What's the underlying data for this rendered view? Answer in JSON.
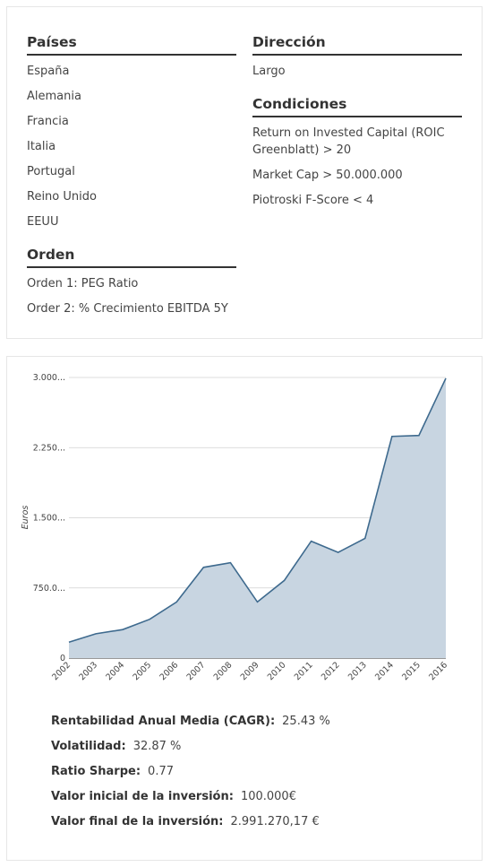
{
  "criteria": {
    "countries": {
      "title": "Países",
      "items": [
        "España",
        "Alemania",
        "Francia",
        "Italia",
        "Portugal",
        "Reino Unido",
        "EEUU"
      ]
    },
    "order": {
      "title": "Orden",
      "items": [
        "Orden 1: PEG Ratio",
        "Order 2: % Crecimiento EBITDA 5Y"
      ]
    },
    "direction": {
      "title": "Dirección",
      "items": [
        "Largo"
      ]
    },
    "conditions": {
      "title": "Condiciones",
      "items": [
        "Return on Invested Capital (ROIC Greenblatt) > 20",
        "Market Cap > 50.000.000",
        "Piotroski F-Score < 4"
      ]
    }
  },
  "chart_data": {
    "type": "area",
    "ylabel": "Euros",
    "x": [
      "2002",
      "2003",
      "2004",
      "2005",
      "2006",
      "2007",
      "2008",
      "2009",
      "2010",
      "2011",
      "2012",
      "2013",
      "2014",
      "2015",
      "2016"
    ],
    "values": [
      170,
      260,
      305,
      415,
      600,
      970,
      1020,
      600,
      830,
      1250,
      1130,
      1280,
      2370,
      2380,
      2991
    ],
    "ylim": [
      0,
      3000
    ],
    "yticks": [
      0,
      750,
      1500,
      2250,
      3000
    ],
    "ytick_labels": [
      "0",
      "750.0...",
      "1.500...",
      "2.250...",
      "3.000..."
    ],
    "grid": true,
    "fill_color": "#c8d5e1",
    "line_color": "#3e6a8e"
  },
  "stats": {
    "cagr": {
      "label": "Rentabilidad Anual Media (CAGR):",
      "value": "25.43 %"
    },
    "volatility": {
      "label": "Volatilidad:",
      "value": "32.87 %"
    },
    "sharpe": {
      "label": "Ratio Sharpe:",
      "value": "0.77"
    },
    "initial": {
      "label": "Valor inicial de la inversión:",
      "value": "100.000€"
    },
    "final": {
      "label": "Valor final de la inversión:",
      "value": "2.991.270,17 €"
    }
  }
}
